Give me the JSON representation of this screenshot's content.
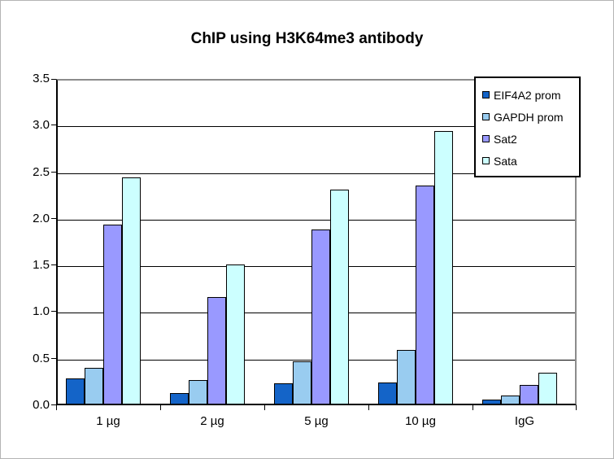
{
  "chart_data": {
    "type": "bar",
    "title": "ChIP using H3K64me3 antibody",
    "xlabel": "",
    "ylabel": "",
    "categories": [
      "1 µg",
      "2 µg",
      "5 µg",
      "10 µg",
      "IgG"
    ],
    "series": [
      {
        "name": "EIF4A2 prom",
        "color": "#1464C8",
        "values": [
          0.27,
          0.11,
          0.22,
          0.23,
          0.04
        ]
      },
      {
        "name": "GAPDH prom",
        "color": "#99CCF0",
        "values": [
          0.38,
          0.25,
          0.45,
          0.58,
          0.09
        ]
      },
      {
        "name": "Sat2",
        "color": "#9999FF",
        "values": [
          1.92,
          1.14,
          1.87,
          2.34,
          0.2
        ]
      },
      {
        "name": "Sata",
        "color": "#CCFFFF",
        "values": [
          2.43,
          1.49,
          2.3,
          2.92,
          0.33
        ]
      }
    ],
    "ylim": [
      0,
      3.5
    ],
    "yticks": [
      0,
      0.5,
      1,
      1.5,
      2,
      2.5,
      3,
      3.5
    ],
    "ytick_labels": [
      "0.0",
      "0.5",
      "1.0",
      "1.5",
      "2.0",
      "2.5",
      "3.0",
      "3.5"
    ],
    "grid": "horizontal",
    "legend_position": "top-right",
    "colors": {
      "gridline": "#000000",
      "plot_frame_shadow": "#8c8c8c",
      "axis": "#000000",
      "background": "#ffffff"
    }
  }
}
